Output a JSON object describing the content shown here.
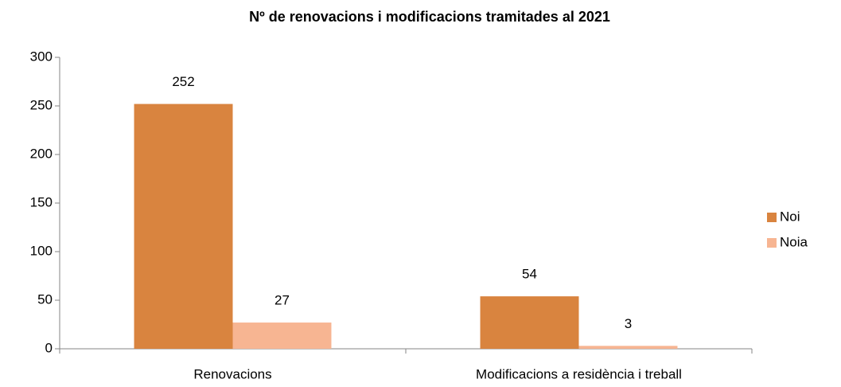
{
  "chart_data": {
    "type": "bar",
    "title": "Nº de renovacions i modificacions tramitades al 2021",
    "categories": [
      "Renovacions",
      "Modificacions a residència i treball"
    ],
    "series": [
      {
        "name": "Noi",
        "color": "#d9843f",
        "values": [
          252,
          54
        ]
      },
      {
        "name": "Noia",
        "color": "#f7b592",
        "values": [
          27,
          3
        ]
      }
    ],
    "ylim": [
      0,
      300
    ],
    "yticks": [
      0,
      50,
      100,
      150,
      200,
      250,
      300
    ],
    "grid": false,
    "legend": "right"
  }
}
